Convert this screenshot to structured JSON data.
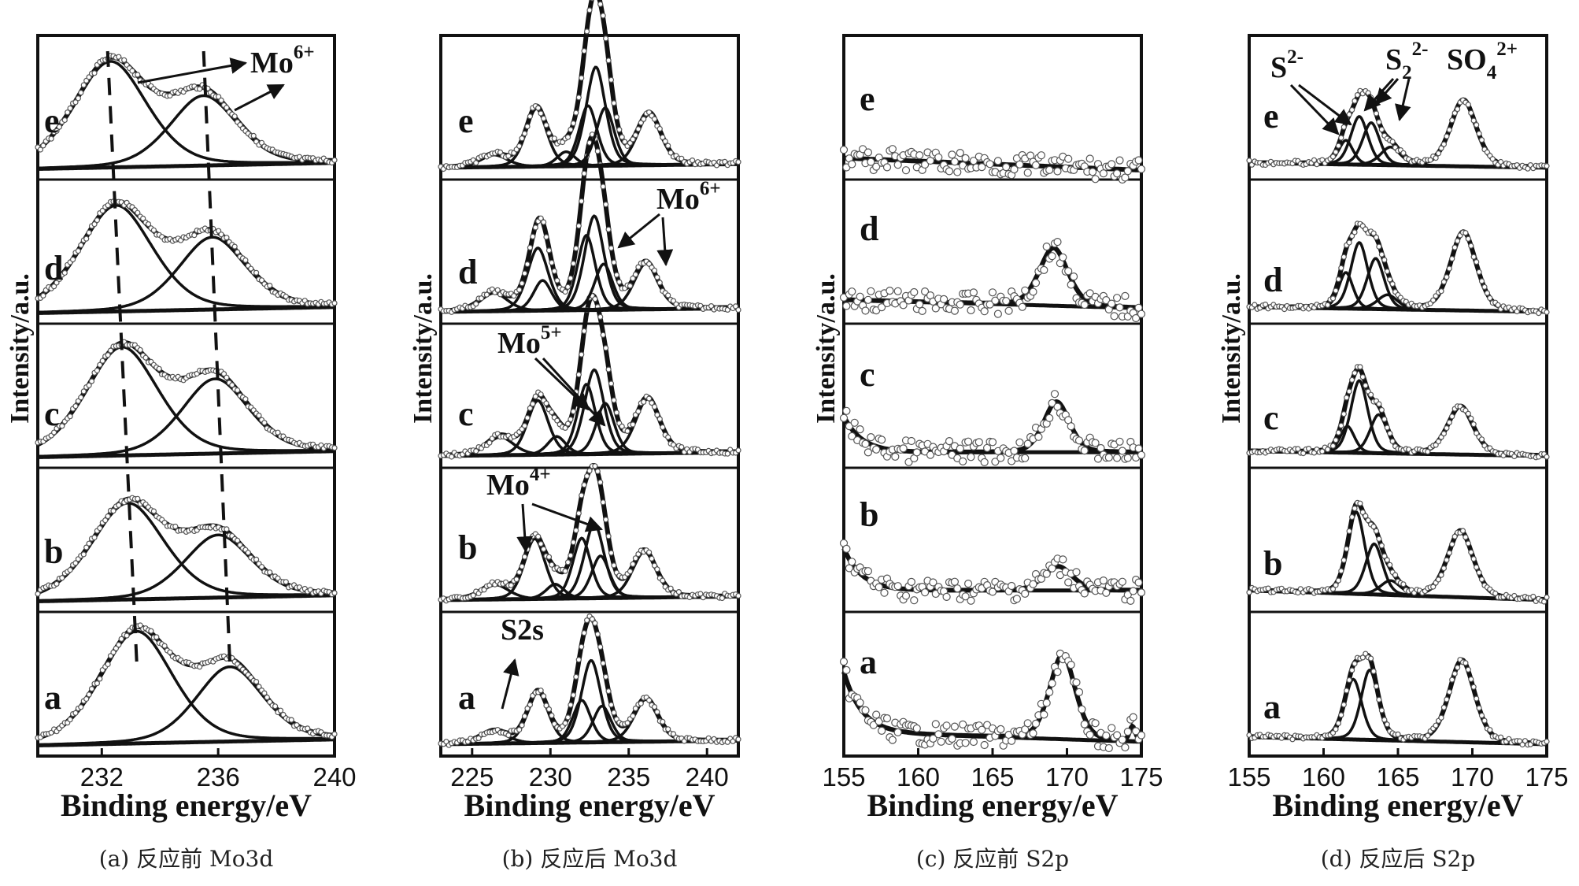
{
  "chart_data": [
    {
      "type": "line",
      "caption": "(a) 反应前 Mo3d",
      "xlabel": "Binding energy/eV",
      "ylabel": "Intensity/a.u.",
      "xlim": [
        229.8,
        240
      ],
      "xticks": [
        232,
        236,
        240
      ],
      "xtick_labels": [
        "232",
        "236",
        "240"
      ],
      "samples": [
        "a",
        "b",
        "c",
        "d",
        "e"
      ],
      "annotations": [
        {
          "text": "Mo",
          "sup": "6+"
        }
      ],
      "dashed_lines": [
        {
          "name": "peak-1",
          "x": [
            233.2,
            232.2
          ]
        },
        {
          "name": "peak-2",
          "x": [
            236.4,
            235.5
          ]
        }
      ],
      "series": [
        {
          "sample": "a",
          "peaks": [
            {
              "center": 233.2,
              "height": 0.93,
              "width": 1.3
            },
            {
              "center": 236.4,
              "height": 0.62,
              "width": 1.2
            }
          ],
          "baseline": [
            0.01,
            0.06
          ]
        },
        {
          "sample": "b",
          "peaks": [
            {
              "center": 232.9,
              "height": 0.8,
              "width": 1.3
            },
            {
              "center": 236.0,
              "height": 0.52,
              "width": 1.2
            }
          ],
          "baseline": [
            0.01,
            0.06
          ]
        },
        {
          "sample": "c",
          "peaks": [
            {
              "center": 232.7,
              "height": 0.9,
              "width": 1.3
            },
            {
              "center": 235.9,
              "height": 0.62,
              "width": 1.2
            }
          ],
          "baseline": [
            0.01,
            0.06
          ]
        },
        {
          "sample": "d",
          "peaks": [
            {
              "center": 232.5,
              "height": 0.88,
              "width": 1.3
            },
            {
              "center": 235.8,
              "height": 0.6,
              "width": 1.2
            }
          ],
          "baseline": [
            0.01,
            0.06
          ]
        },
        {
          "sample": "e",
          "peaks": [
            {
              "center": 232.3,
              "height": 0.88,
              "width": 1.3
            },
            {
              "center": 235.5,
              "height": 0.58,
              "width": 1.2
            }
          ],
          "baseline": [
            0.01,
            0.06
          ]
        }
      ]
    },
    {
      "type": "line",
      "caption": "(b) 反应后 Mo3d",
      "xlabel": "Binding energy/eV",
      "ylabel": "Intensity/a.u.",
      "xlim": [
        223,
        242
      ],
      "xticks": [
        225,
        230,
        235,
        240
      ],
      "xtick_labels": [
        "225",
        "230",
        "235",
        "240"
      ],
      "samples": [
        "a",
        "b",
        "c",
        "d",
        "e"
      ],
      "annotations": [
        {
          "text": "S2s",
          "sup": ""
        },
        {
          "text": "Mo",
          "sup": "4+"
        },
        {
          "text": "Mo",
          "sup": "5+"
        },
        {
          "text": "Mo",
          "sup": "6+"
        }
      ],
      "series": [
        {
          "sample": "a",
          "peaks": [
            {
              "center": 226.4,
              "height": 0.1,
              "width": 0.9
            },
            {
              "center": 229.2,
              "height": 0.42,
              "width": 0.7
            },
            {
              "center": 232.0,
              "height": 0.35,
              "width": 0.6
            },
            {
              "center": 232.6,
              "height": 0.68,
              "width": 0.65
            },
            {
              "center": 233.3,
              "height": 0.3,
              "width": 0.6
            },
            {
              "center": 236.1,
              "height": 0.35,
              "width": 0.8
            }
          ],
          "baseline": [
            0.02,
            0.05
          ]
        },
        {
          "sample": "b",
          "peaks": [
            {
              "center": 226.5,
              "height": 0.12,
              "width": 0.9
            },
            {
              "center": 229.0,
              "height": 0.5,
              "width": 0.7
            },
            {
              "center": 230.3,
              "height": 0.12,
              "width": 0.6
            },
            {
              "center": 232.0,
              "height": 0.5,
              "width": 0.6
            },
            {
              "center": 232.8,
              "height": 0.62,
              "width": 0.65
            },
            {
              "center": 233.2,
              "height": 0.35,
              "width": 0.6
            },
            {
              "center": 236.0,
              "height": 0.38,
              "width": 0.8
            }
          ],
          "baseline": [
            0.02,
            0.05
          ]
        },
        {
          "sample": "c",
          "peaks": [
            {
              "center": 226.8,
              "height": 0.15,
              "width": 0.9
            },
            {
              "center": 229.2,
              "height": 0.45,
              "width": 0.7
            },
            {
              "center": 230.4,
              "height": 0.15,
              "width": 0.6
            },
            {
              "center": 232.3,
              "height": 0.58,
              "width": 0.6
            },
            {
              "center": 232.8,
              "height": 0.7,
              "width": 0.65
            },
            {
              "center": 233.5,
              "height": 0.42,
              "width": 0.6
            },
            {
              "center": 236.2,
              "height": 0.45,
              "width": 0.8
            }
          ],
          "baseline": [
            0.02,
            0.05
          ]
        },
        {
          "sample": "d",
          "peaks": [
            {
              "center": 226.4,
              "height": 0.15,
              "width": 0.9
            },
            {
              "center": 229.2,
              "height": 0.52,
              "width": 0.7
            },
            {
              "center": 229.5,
              "height": 0.25,
              "width": 0.6
            },
            {
              "center": 232.3,
              "height": 0.62,
              "width": 0.6
            },
            {
              "center": 232.8,
              "height": 0.78,
              "width": 0.65
            },
            {
              "center": 233.4,
              "height": 0.38,
              "width": 0.6
            },
            {
              "center": 236.1,
              "height": 0.38,
              "width": 0.8
            }
          ],
          "baseline": [
            0.02,
            0.05
          ]
        },
        {
          "sample": "e",
          "peaks": [
            {
              "center": 226.4,
              "height": 0.1,
              "width": 0.9
            },
            {
              "center": 229.1,
              "height": 0.48,
              "width": 0.7
            },
            {
              "center": 231.0,
              "height": 0.12,
              "width": 0.6
            },
            {
              "center": 232.4,
              "height": 0.5,
              "width": 0.6
            },
            {
              "center": 232.9,
              "height": 0.82,
              "width": 0.65
            },
            {
              "center": 233.5,
              "height": 0.48,
              "width": 0.6
            },
            {
              "center": 236.3,
              "height": 0.42,
              "width": 0.8
            }
          ],
          "baseline": [
            0.02,
            0.05
          ]
        }
      ]
    },
    {
      "type": "line",
      "caption": "(c) 反应前 S2p",
      "xlabel": "Binding energy/eV",
      "ylabel": "Intensity/a.u.",
      "xlim": [
        155,
        175
      ],
      "xticks": [
        155,
        160,
        165,
        170,
        175
      ],
      "xtick_labels": [
        "155",
        "160",
        "165",
        "170",
        "175"
      ],
      "samples": [
        "a",
        "b",
        "c",
        "d",
        "e"
      ],
      "series": [
        {
          "sample": "a",
          "peaks": [
            {
              "center": 169.7,
              "height": 0.7,
              "width": 0.9
            },
            {
              "center": 174.4,
              "height": 0.12,
              "width": 0.2
            }
          ],
          "tail": 0.5,
          "baseline": [
            0.12,
            0.04
          ]
        },
        {
          "sample": "b",
          "peaks": [
            {
              "center": 169.4,
              "height": 0.2,
              "width": 1.0
            }
          ],
          "tail": 0.35,
          "baseline": [
            0.1,
            0.1
          ]
        },
        {
          "sample": "c",
          "peaks": [
            {
              "center": 169.3,
              "height": 0.42,
              "width": 0.9
            }
          ],
          "tail": 0.3,
          "baseline": [
            0.05,
            0.05
          ]
        },
        {
          "sample": "d",
          "peaks": [
            {
              "center": 169.1,
              "height": 0.48,
              "width": 1.0
            }
          ],
          "tail": 0.0,
          "baseline": [
            0.12,
            0.05
          ]
        },
        {
          "sample": "e",
          "peaks": [],
          "tail": 0.0,
          "baseline": [
            0.1,
            0.0
          ]
        }
      ]
    },
    {
      "type": "line",
      "caption": "(d) 反应后 S2p",
      "xlabel": "Binding energy/eV",
      "ylabel": "Intensity/a.u.",
      "xlim": [
        155,
        175
      ],
      "xticks": [
        155,
        160,
        165,
        170,
        175
      ],
      "xtick_labels": [
        "155",
        "160",
        "165",
        "170",
        "175"
      ],
      "samples": [
        "a",
        "b",
        "c",
        "d",
        "e"
      ],
      "annotations": [
        {
          "text": "S",
          "sup": "2-"
        },
        {
          "text": "S",
          "sub": "2",
          "sup": "2-"
        },
        {
          "text": "SO",
          "sup": "2+",
          "sub": "4"
        }
      ],
      "series": [
        {
          "sample": "a",
          "peaks": [
            {
              "center": 162.0,
              "height": 0.5,
              "width": 0.6
            },
            {
              "center": 163.1,
              "height": 0.58,
              "width": 0.6
            },
            {
              "center": 169.3,
              "height": 0.68,
              "width": 0.9
            }
          ],
          "baseline": [
            0.08,
            0.02
          ]
        },
        {
          "sample": "b",
          "peaks": [
            {
              "center": 162.2,
              "height": 0.68,
              "width": 0.6
            },
            {
              "center": 163.4,
              "height": 0.42,
              "width": 0.6
            },
            {
              "center": 164.5,
              "height": 0.12,
              "width": 0.7
            },
            {
              "center": 169.2,
              "height": 0.55,
              "width": 0.9
            }
          ],
          "baseline": [
            0.1,
            0.02
          ]
        },
        {
          "sample": "c",
          "peaks": [
            {
              "center": 161.6,
              "height": 0.22,
              "width": 0.5
            },
            {
              "center": 162.4,
              "height": 0.6,
              "width": 0.6
            },
            {
              "center": 163.7,
              "height": 0.32,
              "width": 0.6
            },
            {
              "center": 169.2,
              "height": 0.4,
              "width": 0.9
            }
          ],
          "baseline": [
            0.06,
            0.02
          ]
        },
        {
          "sample": "d",
          "peaks": [
            {
              "center": 161.5,
              "height": 0.3,
              "width": 0.5
            },
            {
              "center": 162.4,
              "height": 0.55,
              "width": 0.6
            },
            {
              "center": 163.5,
              "height": 0.42,
              "width": 0.6
            },
            {
              "center": 164.3,
              "height": 0.12,
              "width": 0.7
            },
            {
              "center": 169.4,
              "height": 0.65,
              "width": 0.9
            }
          ],
          "baseline": [
            0.06,
            0.02
          ]
        },
        {
          "sample": "e",
          "peaks": [
            {
              "center": 161.5,
              "height": 0.2,
              "width": 0.5
            },
            {
              "center": 162.4,
              "height": 0.4,
              "width": 0.6
            },
            {
              "center": 163.2,
              "height": 0.35,
              "width": 0.6
            },
            {
              "center": 164.5,
              "height": 0.15,
              "width": 0.7
            },
            {
              "center": 169.4,
              "height": 0.55,
              "width": 0.9
            }
          ],
          "baseline": [
            0.06,
            0.02
          ]
        }
      ]
    }
  ]
}
